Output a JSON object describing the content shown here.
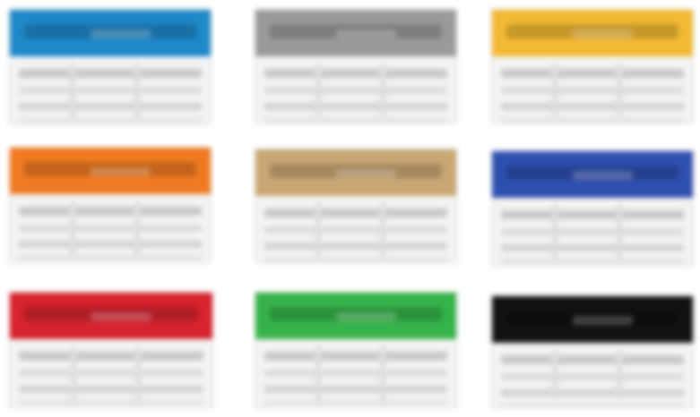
{
  "swatches": [
    {
      "name": "blue",
      "header_color": "#1e88c8"
    },
    {
      "name": "gray",
      "header_color": "#9a9a9a"
    },
    {
      "name": "gold",
      "header_color": "#f2b934"
    },
    {
      "name": "orange",
      "header_color": "#f07a22"
    },
    {
      "name": "tan",
      "header_color": "#c9a774"
    },
    {
      "name": "navy",
      "header_color": "#2f4fb0"
    },
    {
      "name": "red",
      "header_color": "#d7232e"
    },
    {
      "name": "green",
      "header_color": "#35b34a"
    },
    {
      "name": "black",
      "header_color": "#121212"
    }
  ]
}
